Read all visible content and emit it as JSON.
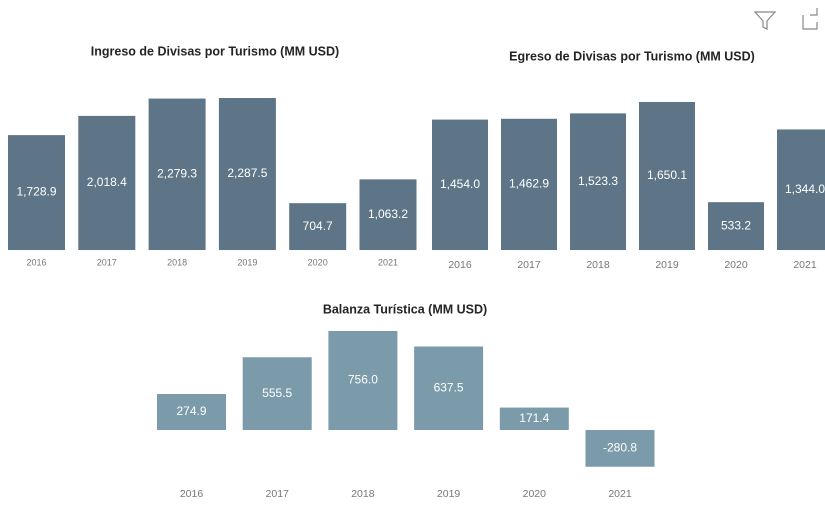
{
  "chart_data": [
    {
      "type": "bar",
      "title": "Ingreso de Divisas por Turismo (MM USD)",
      "categories": [
        "2016",
        "2017",
        "2018",
        "2019",
        "2020",
        "2021"
      ],
      "values": [
        1728.9,
        2018.4,
        2279.3,
        2287.5,
        704.7,
        1063.2
      ],
      "value_labels": [
        "1,728.9",
        "2,018.4",
        "2,279.3",
        "2,287.5",
        "704.7",
        "1,063.2"
      ],
      "color": "#5d7587"
    },
    {
      "type": "bar",
      "title": "Egreso de Divisas por Turismo (MM USD)",
      "categories": [
        "2016",
        "2017",
        "2018",
        "2019",
        "2020",
        "2021"
      ],
      "values": [
        1454.0,
        1462.9,
        1523.3,
        1650.1,
        533.2,
        1344.0
      ],
      "value_labels": [
        "1,454.0",
        "1,462.9",
        "1,523.3",
        "1,650.1",
        "533.2",
        "1,344.0"
      ],
      "color": "#5d7587"
    },
    {
      "type": "bar",
      "title": "Balanza Turística (MM USD)",
      "categories": [
        "2016",
        "2017",
        "2018",
        "2019",
        "2020",
        "2021"
      ],
      "values": [
        274.9,
        555.5,
        756.0,
        637.5,
        171.4,
        -280.8
      ],
      "value_labels": [
        "274.9",
        "555.5",
        "756.0",
        "637.5",
        "171.4",
        "-280.8"
      ],
      "color": "#7b9bab"
    }
  ]
}
